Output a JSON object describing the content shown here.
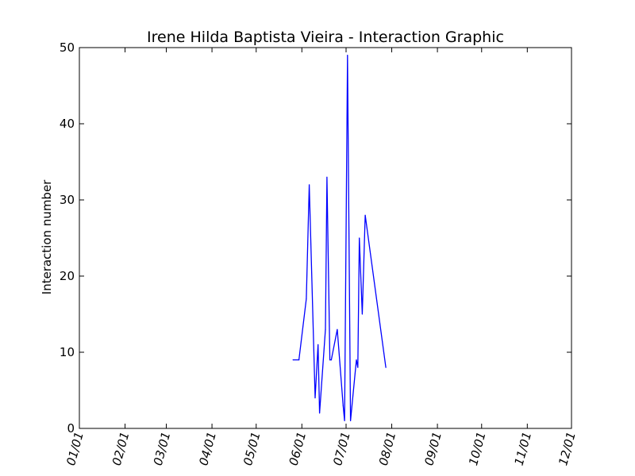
{
  "chart_data": {
    "type": "line",
    "title": "Irene Hilda Baptista Vieira - Interaction Graphic",
    "xlabel": "",
    "ylabel": "Interaction number",
    "xlim": [
      "01/01",
      "12/01"
    ],
    "ylim": [
      0,
      50
    ],
    "x_ticks": [
      "01/01",
      "02/01",
      "03/01",
      "04/01",
      "05/01",
      "06/01",
      "07/01",
      "08/01",
      "09/01",
      "10/01",
      "11/01",
      "12/01"
    ],
    "y_ticks": [
      0,
      10,
      20,
      30,
      40,
      50
    ],
    "grid": false,
    "legend": "none",
    "series": [
      {
        "color": "#0000ff",
        "x": [
          "05/26",
          "05/30",
          "06/04",
          "06/06",
          "06/10",
          "06/12",
          "06/13",
          "06/17",
          "06/18",
          "06/20",
          "06/21",
          "06/25",
          "06/29",
          "06/30",
          "07/02",
          "07/04",
          "07/08",
          "07/09",
          "07/10",
          "07/12",
          "07/14",
          "07/28"
        ],
        "values": [
          9,
          9,
          17,
          32,
          4,
          11,
          2,
          13,
          33,
          9,
          9,
          13,
          3,
          1,
          49,
          1,
          9,
          8,
          25,
          15,
          28,
          8
        ]
      }
    ]
  }
}
